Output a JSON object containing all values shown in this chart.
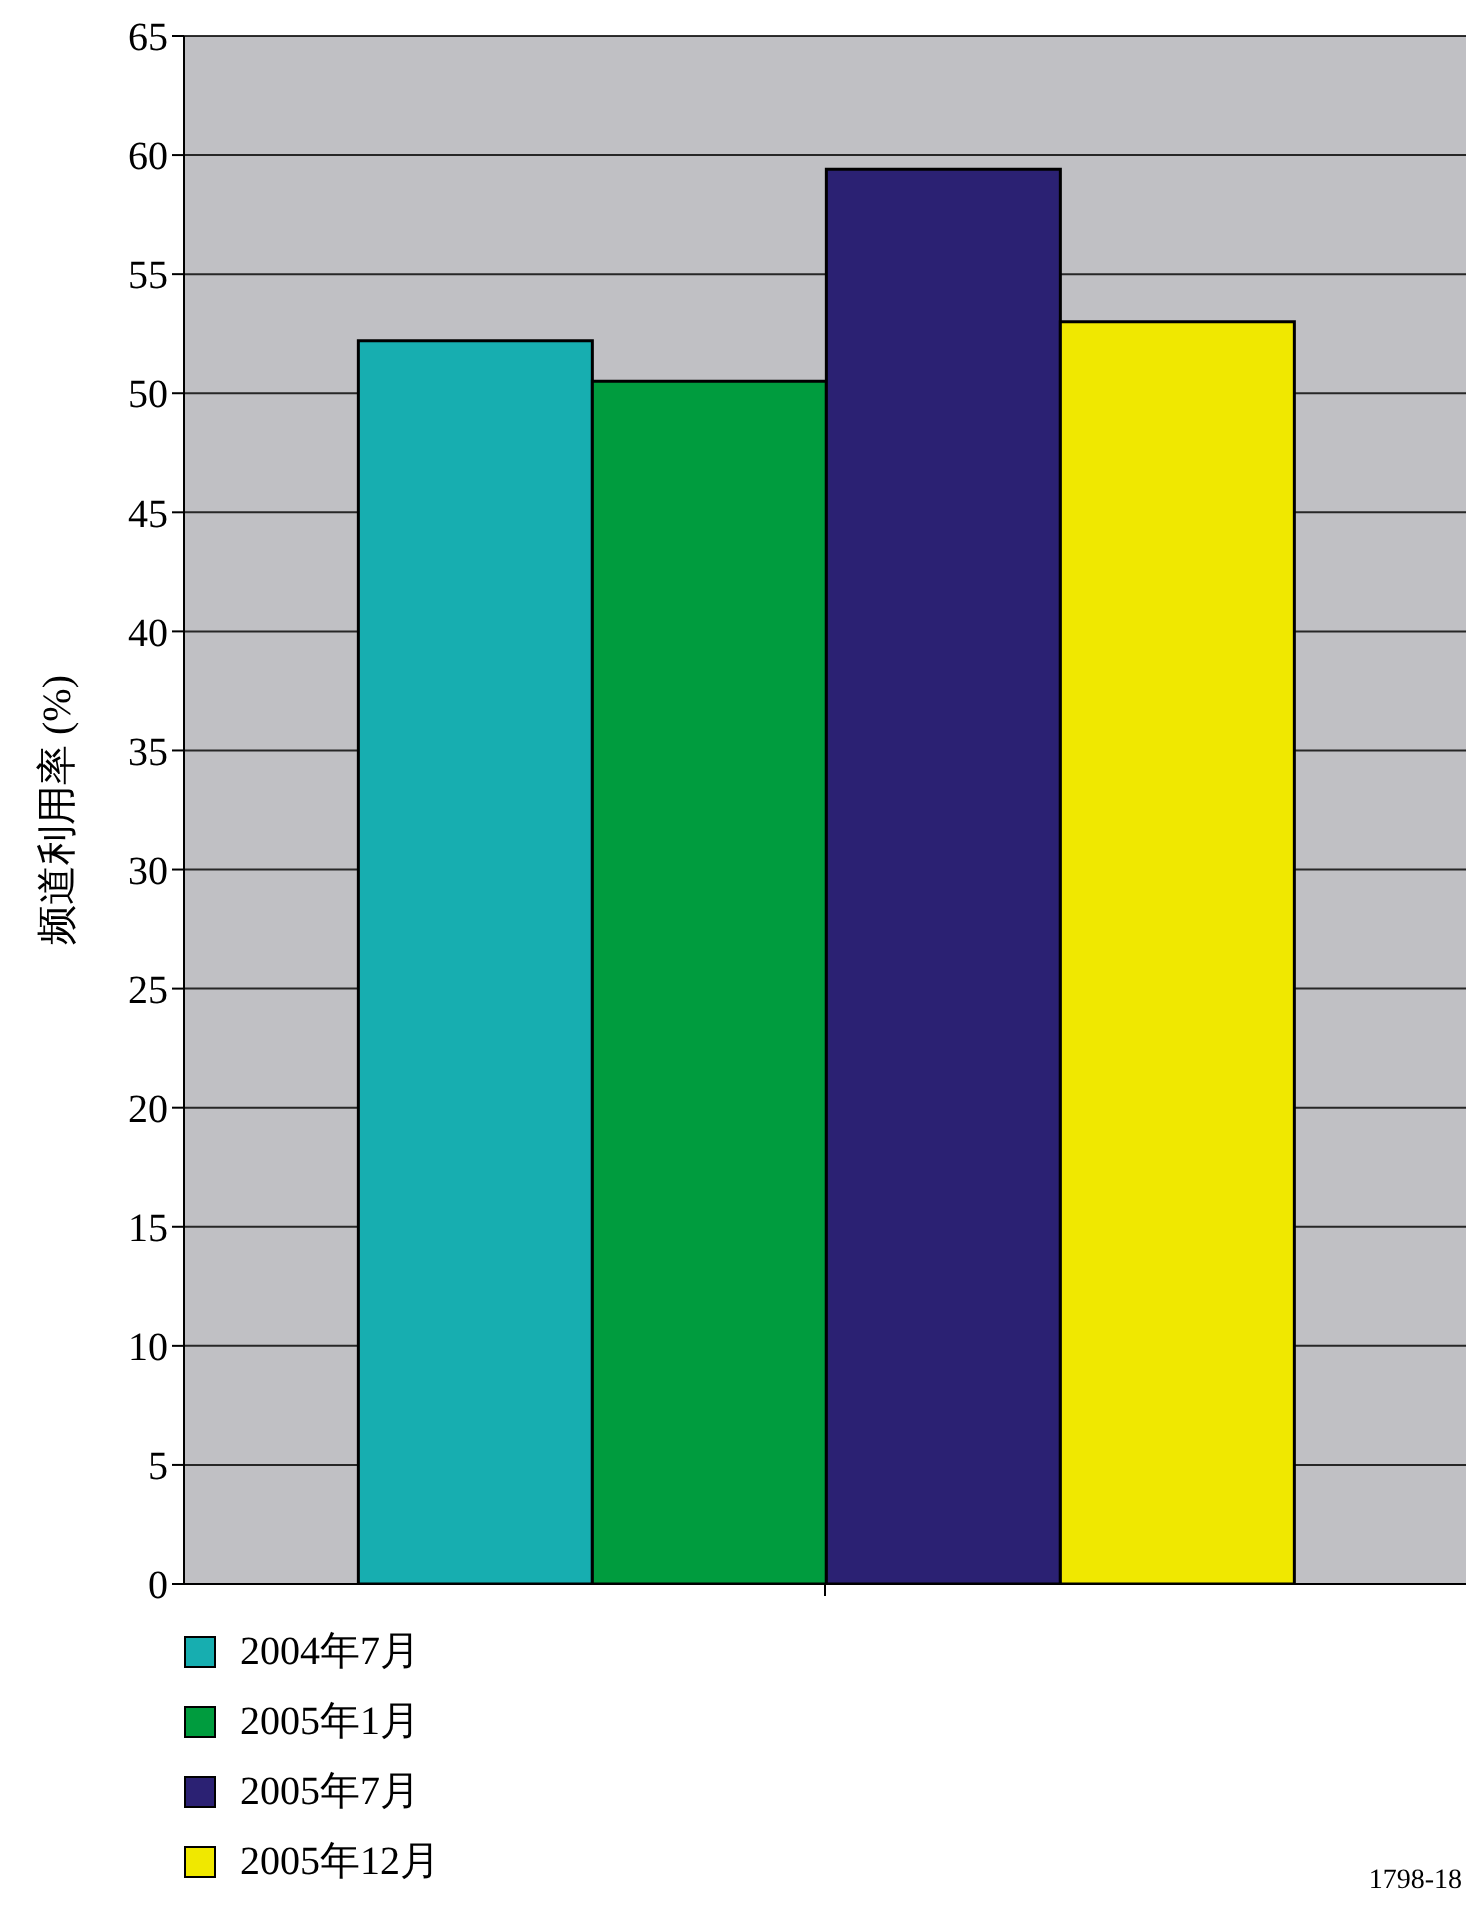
{
  "chart_data": {
    "type": "bar",
    "ylabel": "频道利用率 (%)",
    "categories": [
      null
    ],
    "series": [
      {
        "name": "2004年7月",
        "color": "#17aeb0",
        "values": [
          52.2
        ]
      },
      {
        "name": "2005年1月",
        "color": "#009c3e",
        "values": [
          50.5
        ]
      },
      {
        "name": "2005年7月",
        "color": "#2b2173",
        "values": [
          59.4
        ]
      },
      {
        "name": "2005年12月",
        "color": "#f0e800",
        "values": [
          53.0
        ]
      }
    ],
    "ylim": [
      0,
      65
    ],
    "yticks": [
      0,
      5,
      10,
      15,
      20,
      25,
      30,
      35,
      40,
      45,
      50,
      55,
      60,
      65
    ],
    "grid": "y",
    "legend": "bottom left",
    "annotations": [
      "1798-18"
    ]
  }
}
